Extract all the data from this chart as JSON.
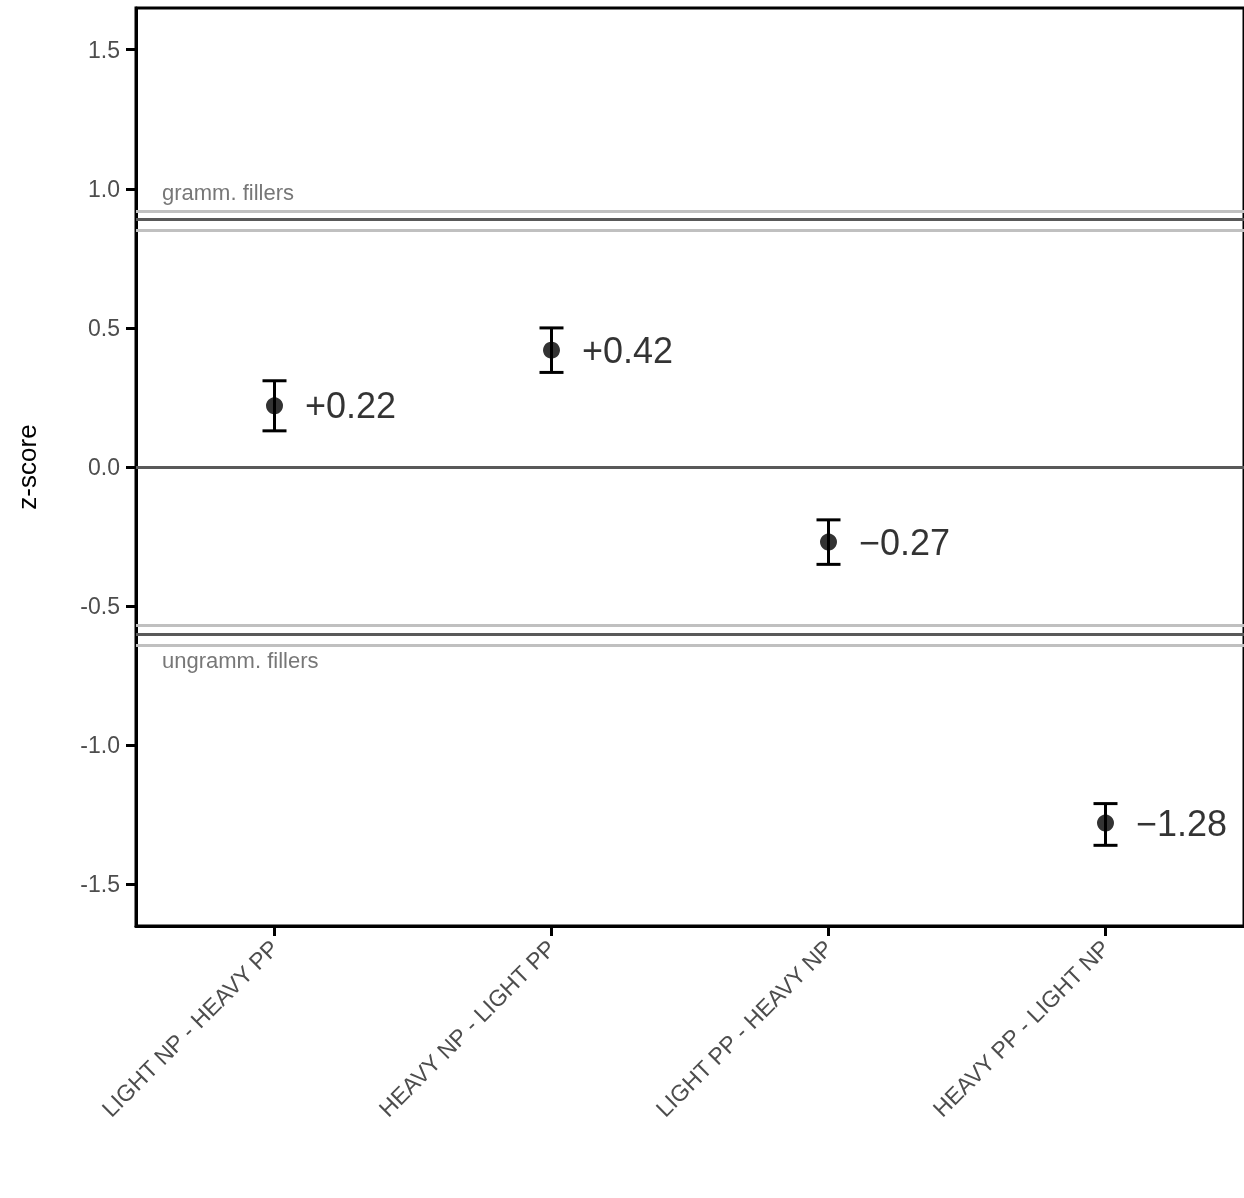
{
  "chart_data": {
    "type": "scatter",
    "ylabel": "z-score",
    "categories": [
      "LIGHT NP - HEAVY PP",
      "HEAVY NP - LIGHT PP",
      "LIGHT PP - HEAVY NP",
      "HEAVY PP - LIGHT NP"
    ],
    "values": [
      0.22,
      0.42,
      -0.27,
      -1.28
    ],
    "errors": [
      [
        0.13,
        0.31
      ],
      [
        0.34,
        0.5
      ],
      [
        -0.35,
        -0.19
      ],
      [
        -1.36,
        -1.21
      ]
    ],
    "value_labels": [
      "+0.22",
      "+0.42",
      "−0.27",
      "−1.28"
    ],
    "color": "#000000",
    "marker": "circle",
    "ylim": [
      -1.65,
      1.65
    ],
    "yticks": [
      -1.5,
      {
        "value": -1,
        "label": "-1.0"
      },
      -0.5,
      {
        "value": 0,
        "label": "0.0"
      },
      0.5,
      {
        "value": 1,
        "label": "1.0"
      },
      1.5
    ],
    "ref_lines": [
      {
        "axis": "y",
        "value": 0,
        "label": null,
        "color": "#595959"
      },
      {
        "axis": "y",
        "value": 0.92,
        "label": null,
        "color": "#c0c0c0"
      },
      {
        "axis": "y",
        "value": 0.85,
        "label": null,
        "color": "#c0c0c0"
      },
      {
        "axis": "y",
        "value": 0.89,
        "label": "gramm. fillers",
        "color": "#595959"
      },
      {
        "axis": "y",
        "value": -0.57,
        "label": null,
        "color": "#c0c0c0"
      },
      {
        "axis": "y",
        "value": -0.64,
        "label": null,
        "color": "#c0c0c0"
      },
      {
        "axis": "y",
        "value": -0.6,
        "label": "ungramm. fillers",
        "color": "#595959"
      }
    ],
    "grid": false
  }
}
